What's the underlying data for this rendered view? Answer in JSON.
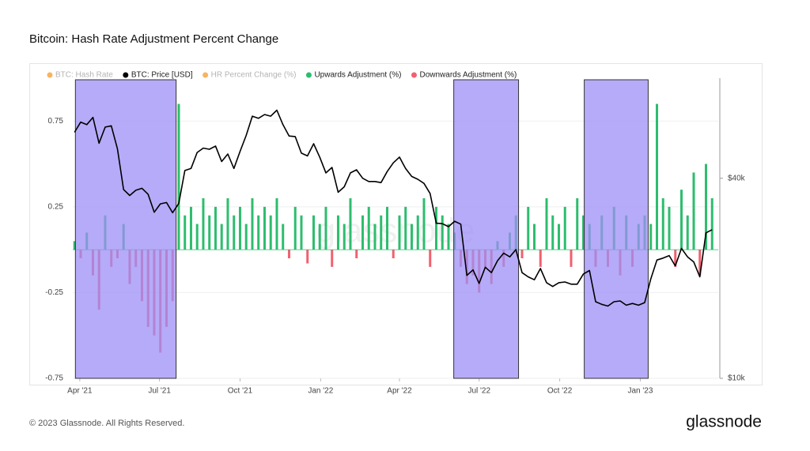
{
  "chart_data": {
    "type": "bar",
    "title": "Bitcoin: Hash Rate Adjustment Percent Change",
    "watermark": "glassnode",
    "footer": "© 2023 Glassnode. All Rights Reserved.",
    "logo": "glassnode",
    "grid": true,
    "xlim": [
      "2021-03-24",
      "2023-03-31"
    ],
    "xticks": [
      {
        "value": "2021-04-01",
        "label": "Apr '21"
      },
      {
        "value": "2021-07-01",
        "label": "Jul '21"
      },
      {
        "value": "2021-10-01",
        "label": "Oct '21"
      },
      {
        "value": "2022-01-01",
        "label": "Jan '22"
      },
      {
        "value": "2022-04-01",
        "label": "Apr '22"
      },
      {
        "value": "2022-07-01",
        "label": "Jul '22"
      },
      {
        "value": "2022-10-01",
        "label": "Oct '22"
      },
      {
        "value": "2023-01-01",
        "label": "Jan '23"
      }
    ],
    "ylim": [
      -0.75,
      1.0
    ],
    "yticks": [
      -0.75,
      -0.25,
      0.25,
      0.75
    ],
    "y2lim": [
      10000,
      80000
    ],
    "y2scale": "log",
    "y2ticks": [
      {
        "value": 10000,
        "label": "$10k"
      },
      {
        "value": 40000,
        "label": "$40k"
      }
    ],
    "shaded_regions": [
      {
        "start": "2021-03-27",
        "end": "2021-07-20"
      },
      {
        "start": "2022-06-02",
        "end": "2022-08-15"
      },
      {
        "start": "2022-10-29",
        "end": "2023-01-10"
      }
    ],
    "region_color": "#9d8ff5",
    "x": [
      "2021-03-26",
      "2021-04-02",
      "2021-04-09",
      "2021-04-16",
      "2021-04-23",
      "2021-04-30",
      "2021-05-07",
      "2021-05-14",
      "2021-05-21",
      "2021-05-28",
      "2021-06-04",
      "2021-06-11",
      "2021-06-18",
      "2021-06-25",
      "2021-07-02",
      "2021-07-09",
      "2021-07-16",
      "2021-07-23",
      "2021-07-30",
      "2021-08-06",
      "2021-08-13",
      "2021-08-20",
      "2021-08-27",
      "2021-09-03",
      "2021-09-10",
      "2021-09-17",
      "2021-09-24",
      "2021-10-01",
      "2021-10-08",
      "2021-10-15",
      "2021-10-22",
      "2021-10-29",
      "2021-11-05",
      "2021-11-12",
      "2021-11-19",
      "2021-11-26",
      "2021-12-03",
      "2021-12-10",
      "2021-12-17",
      "2021-12-24",
      "2021-12-31",
      "2022-01-07",
      "2022-01-14",
      "2022-01-21",
      "2022-01-28",
      "2022-02-04",
      "2022-02-11",
      "2022-02-18",
      "2022-02-25",
      "2022-03-04",
      "2022-03-11",
      "2022-03-18",
      "2022-03-25",
      "2022-04-01",
      "2022-04-08",
      "2022-04-15",
      "2022-04-22",
      "2022-04-29",
      "2022-05-06",
      "2022-05-13",
      "2022-05-20",
      "2022-05-27",
      "2022-06-03",
      "2022-06-10",
      "2022-06-17",
      "2022-06-24",
      "2022-07-01",
      "2022-07-08",
      "2022-07-15",
      "2022-07-22",
      "2022-07-29",
      "2022-08-05",
      "2022-08-12",
      "2022-08-19",
      "2022-08-26",
      "2022-09-02",
      "2022-09-09",
      "2022-09-16",
      "2022-09-23",
      "2022-09-30",
      "2022-10-07",
      "2022-10-14",
      "2022-10-21",
      "2022-10-28",
      "2022-11-04",
      "2022-11-11",
      "2022-11-18",
      "2022-11-25",
      "2022-12-02",
      "2022-12-09",
      "2022-12-16",
      "2022-12-23",
      "2022-12-30",
      "2023-01-06",
      "2023-01-13",
      "2023-01-20",
      "2023-01-27",
      "2023-02-03",
      "2023-02-10",
      "2023-02-17",
      "2023-02-24",
      "2023-03-03",
      "2023-03-10",
      "2023-03-17",
      "2023-03-24"
    ],
    "series": [
      {
        "name": "BTC: Hash Rate",
        "color": "#f7931a",
        "visible": false
      },
      {
        "name": "BTC: Price [USD]",
        "color": "#000000",
        "type": "line",
        "axis": "y2",
        "values": [
          55000,
          59000,
          58000,
          61000,
          51000,
          57000,
          57500,
          49000,
          37000,
          35500,
          36800,
          37300,
          35800,
          31600,
          33500,
          33800,
          31500,
          33600,
          42200,
          42800,
          47800,
          49300,
          48900,
          50000,
          44900,
          47300,
          42800,
          48200,
          53800,
          61500,
          60600,
          62200,
          61500,
          64100,
          58000,
          53600,
          53400,
          47600,
          46700,
          50800,
          46300,
          41500,
          43100,
          36300,
          37700,
          41500,
          42400,
          40000,
          39100,
          39100,
          38800,
          41900,
          44500,
          46300,
          42800,
          40500,
          39700,
          38600,
          36000,
          29300,
          29200,
          28600,
          29700,
          29100,
          20400,
          21200,
          19300,
          21600,
          20800,
          22600,
          23800,
          23200,
          24400,
          20800,
          20200,
          19800,
          21400,
          19400,
          18900,
          19400,
          19500,
          19200,
          19200,
          20600,
          21100,
          17000,
          16700,
          16500,
          17000,
          17100,
          16600,
          16800,
          16600,
          16900,
          19900,
          22700,
          23000,
          23400,
          21800,
          24600,
          23200,
          22400,
          20200,
          27400,
          28000
        ]
      },
      {
        "name": "HR Percent Change (%)",
        "color": "#f7931a",
        "visible": false
      },
      {
        "name": "Upwards Adjustment (%)",
        "color": "#2dbd6e",
        "type": "bar",
        "values": [
          0.05,
          null,
          0.1,
          null,
          null,
          0.2,
          null,
          null,
          0.15,
          null,
          null,
          null,
          null,
          null,
          null,
          null,
          null,
          0.85,
          0.2,
          0.25,
          0.15,
          0.3,
          0.2,
          0.25,
          0.15,
          0.3,
          0.2,
          0.25,
          0.15,
          0.3,
          0.2,
          0.25,
          0.2,
          0.3,
          0.15,
          null,
          0.25,
          0.2,
          null,
          0.2,
          0.15,
          0.25,
          null,
          0.2,
          0.15,
          0.3,
          null,
          0.2,
          0.25,
          0.15,
          0.2,
          0.25,
          null,
          0.2,
          0.25,
          0.15,
          0.2,
          0.3,
          null,
          0.25,
          0.2,
          0.15,
          0.1,
          null,
          null,
          null,
          null,
          null,
          null,
          0.05,
          null,
          0.1,
          0.2,
          null,
          0.25,
          0.15,
          null,
          0.3,
          0.2,
          0.15,
          0.25,
          null,
          0.3,
          0.2,
          0.15,
          null,
          0.2,
          null,
          0.25,
          null,
          0.2,
          null,
          0.15,
          0.2,
          0.15,
          0.85,
          0.3,
          0.25,
          null,
          0.35,
          0.2,
          0.45,
          null,
          0.5,
          0.3
        ]
      },
      {
        "name": "Downwards Adjustment (%)",
        "color": "#f2606f",
        "type": "bar",
        "values": [
          null,
          -0.05,
          null,
          -0.15,
          -0.35,
          null,
          -0.1,
          -0.05,
          null,
          -0.2,
          -0.1,
          -0.3,
          -0.45,
          -0.5,
          -0.6,
          -0.45,
          -0.3,
          null,
          null,
          null,
          null,
          null,
          null,
          null,
          null,
          null,
          null,
          null,
          null,
          null,
          null,
          null,
          null,
          null,
          null,
          -0.05,
          null,
          null,
          -0.08,
          null,
          null,
          null,
          -0.1,
          null,
          null,
          null,
          -0.05,
          null,
          null,
          null,
          null,
          null,
          -0.05,
          null,
          null,
          null,
          null,
          null,
          -0.1,
          null,
          null,
          null,
          null,
          -0.1,
          -0.2,
          -0.15,
          -0.25,
          -0.1,
          -0.2,
          null,
          -0.1,
          null,
          null,
          -0.05,
          null,
          null,
          -0.1,
          null,
          null,
          null,
          null,
          -0.1,
          null,
          null,
          null,
          -0.1,
          null,
          -0.1,
          null,
          -0.15,
          null,
          -0.1,
          null,
          null,
          null,
          null,
          null,
          null,
          -0.1,
          null,
          null,
          null,
          -0.15,
          null,
          null
        ]
      }
    ]
  }
}
